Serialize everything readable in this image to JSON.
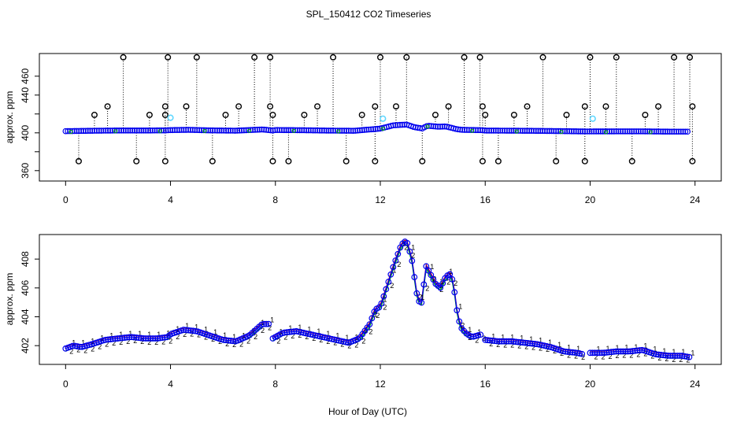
{
  "title": "SPL_150412  CO2 Timeseries",
  "xlabel": "Hour of Day (UTC)",
  "colors": {
    "mean": "#0000ee",
    "fill": "#5fd7ff",
    "outlier": "#000000",
    "a": "#d00000",
    "b": "#00b000"
  },
  "chart_data": [
    {
      "type": "scatter",
      "name": "top",
      "ylabel": "approx. ppm",
      "xlim": [
        -1,
        25
      ],
      "ylim": [
        349,
        484
      ],
      "xticks": [
        0,
        4,
        8,
        12,
        16,
        20,
        24
      ],
      "yticks": [
        360,
        380,
        400,
        420,
        440,
        460
      ],
      "ytick_labels": [
        "360",
        "",
        "400",
        "",
        "440",
        "460"
      ],
      "baseline": [
        [
          0,
          401.8
        ],
        [
          1,
          402.2
        ],
        [
          2,
          402.5
        ],
        [
          3,
          402.5
        ],
        [
          3.8,
          402.6
        ],
        [
          4,
          402.9
        ],
        [
          4.7,
          403.2
        ],
        [
          5.5,
          402.6
        ],
        [
          6.5,
          402.3
        ],
        [
          7.5,
          403.6
        ],
        [
          7.9,
          402.5
        ],
        [
          8,
          403
        ],
        [
          9,
          402.8
        ],
        [
          10,
          402.4
        ],
        [
          11,
          402.2
        ],
        [
          12,
          404.5
        ],
        [
          12.5,
          408
        ],
        [
          13,
          408.8
        ],
        [
          13.3,
          406
        ],
        [
          13.6,
          404.7
        ],
        [
          13.8,
          407.5
        ],
        [
          14.2,
          406.5
        ],
        [
          14.5,
          406.8
        ],
        [
          14.9,
          404
        ],
        [
          15.1,
          403.2
        ],
        [
          15.9,
          402.8
        ],
        [
          16,
          402.4
        ],
        [
          17,
          402.3
        ],
        [
          18,
          402.1
        ],
        [
          19,
          401.8
        ],
        [
          19.8,
          401.5
        ],
        [
          20,
          401.5
        ],
        [
          21,
          401.6
        ],
        [
          22,
          401.6
        ],
        [
          23,
          401.3
        ],
        [
          23.8,
          401.3
        ]
      ],
      "outliers_high": [
        [
          2.2,
          480
        ],
        [
          3.9,
          480
        ],
        [
          5.0,
          480
        ],
        [
          7.2,
          480
        ],
        [
          7.8,
          480
        ],
        [
          10.2,
          480
        ],
        [
          12.0,
          480
        ],
        [
          13.0,
          480
        ],
        [
          15.2,
          480
        ],
        [
          15.8,
          480
        ],
        [
          18.2,
          480
        ],
        [
          20.0,
          480
        ],
        [
          21.0,
          480
        ],
        [
          23.2,
          480
        ],
        [
          23.8,
          480
        ],
        [
          1.6,
          428
        ],
        [
          3.8,
          428
        ],
        [
          4.6,
          428
        ],
        [
          6.6,
          428
        ],
        [
          7.8,
          428
        ],
        [
          9.6,
          428
        ],
        [
          11.8,
          428
        ],
        [
          12.6,
          428
        ],
        [
          14.6,
          428
        ],
        [
          15.9,
          428
        ],
        [
          17.6,
          428
        ],
        [
          19.8,
          428
        ],
        [
          20.6,
          428
        ],
        [
          22.6,
          428
        ],
        [
          23.9,
          428
        ],
        [
          1.1,
          419
        ],
        [
          3.2,
          419
        ],
        [
          3.8,
          419
        ],
        [
          6.1,
          419
        ],
        [
          7.9,
          419
        ],
        [
          9.1,
          419
        ],
        [
          11.3,
          419
        ],
        [
          14.1,
          419
        ],
        [
          16.0,
          419
        ],
        [
          17.1,
          419
        ],
        [
          19.1,
          419
        ],
        [
          22.1,
          419
        ]
      ],
      "outliers_low": [
        [
          0.5,
          370
        ],
        [
          2.7,
          370
        ],
        [
          3.8,
          370
        ],
        [
          5.6,
          370
        ],
        [
          7.9,
          370
        ],
        [
          8.5,
          370
        ],
        [
          10.7,
          370
        ],
        [
          11.8,
          370
        ],
        [
          13.6,
          370
        ],
        [
          15.9,
          370
        ],
        [
          16.5,
          370
        ],
        [
          18.7,
          370
        ],
        [
          19.8,
          370
        ],
        [
          21.6,
          370
        ],
        [
          23.9,
          370
        ]
      ],
      "highlight": [
        [
          4.0,
          416
        ],
        [
          12.1,
          415
        ],
        [
          20.1,
          415
        ]
      ]
    },
    {
      "type": "line",
      "name": "bottom",
      "ylabel": "approx. ppm",
      "xlim": [
        -1,
        25
      ],
      "ylim": [
        400.7,
        409.7
      ],
      "xticks": [
        0,
        4,
        8,
        12,
        16,
        20,
        24
      ],
      "yticks": [
        402,
        404,
        406,
        408
      ],
      "series": [
        {
          "name": "mean",
          "marker": "o",
          "values": [
            [
              0,
              401.8
            ],
            [
              0.3,
              402
            ],
            [
              0.6,
              401.9
            ],
            [
              1,
              402.1
            ],
            [
              1.5,
              402.4
            ],
            [
              2,
              402.5
            ],
            [
              2.5,
              402.6
            ],
            [
              3,
              402.5
            ],
            [
              3.5,
              402.5
            ],
            [
              3.9,
              402.6
            ],
            [
              4,
              402.8
            ],
            [
              4.5,
              403.1
            ],
            [
              5,
              403.0
            ],
            [
              5.5,
              402.7
            ],
            [
              6,
              402.4
            ],
            [
              6.5,
              402.3
            ],
            [
              7,
              402.7
            ],
            [
              7.5,
              403.5
            ],
            [
              7.75,
              403.5
            ]
          ]
        },
        {
          "name": "mean",
          "marker": "o",
          "values": [
            [
              7.9,
              402.5
            ],
            [
              8.3,
              402.9
            ],
            [
              8.8,
              403.0
            ],
            [
              9.3,
              402.8
            ],
            [
              9.8,
              402.6
            ],
            [
              10.3,
              402.4
            ],
            [
              10.8,
              402.2
            ],
            [
              11.2,
              402.5
            ],
            [
              11.6,
              403.5
            ],
            [
              11.8,
              404.5
            ],
            [
              12,
              404.7
            ],
            [
              12.2,
              405.8
            ],
            [
              12.5,
              407.5
            ],
            [
              12.8,
              409.0
            ],
            [
              13.0,
              409.3
            ],
            [
              13.2,
              408.0
            ],
            [
              13.4,
              405.5
            ],
            [
              13.55,
              404.7
            ],
            [
              13.75,
              407.5
            ],
            [
              13.9,
              407.0
            ],
            [
              14.1,
              406.3
            ],
            [
              14.3,
              406.0
            ],
            [
              14.5,
              406.8
            ],
            [
              14.7,
              407.0
            ],
            [
              14.85,
              405.5
            ],
            [
              14.95,
              404.0
            ],
            [
              15.1,
              403.2
            ],
            [
              15.3,
              402.8
            ],
            [
              15.5,
              402.6
            ],
            [
              15.9,
              402.8
            ]
          ]
        },
        {
          "name": "mean",
          "marker": "o",
          "values": [
            [
              16.0,
              402.4
            ],
            [
              16.5,
              402.3
            ],
            [
              17,
              402.3
            ],
            [
              17.5,
              402.2
            ],
            [
              18,
              402.1
            ],
            [
              18.5,
              401.9
            ],
            [
              19,
              401.6
            ],
            [
              19.5,
              401.5
            ],
            [
              19.75,
              401.4
            ]
          ]
        },
        {
          "name": "mean",
          "marker": "o",
          "values": [
            [
              20.0,
              401.5
            ],
            [
              20.5,
              401.5
            ],
            [
              21,
              401.6
            ],
            [
              21.5,
              401.6
            ],
            [
              22,
              401.7
            ],
            [
              22.5,
              401.4
            ],
            [
              23,
              401.3
            ],
            [
              23.5,
              401.3
            ],
            [
              23.8,
              401.2
            ]
          ]
        }
      ]
    }
  ]
}
